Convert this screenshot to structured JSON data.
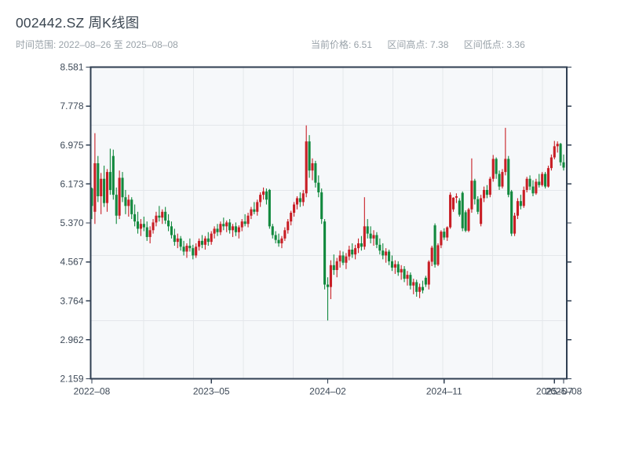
{
  "header": {
    "title": "002442.SZ 周K线图",
    "time_range": "时间范围: 2022–08–26 至 2025–08–08",
    "stats": [
      {
        "text": "当前价格: 6.51"
      },
      {
        "text": "区间高点: 7.38"
      },
      {
        "text": "区间低点: 3.36"
      }
    ]
  },
  "chart_data": {
    "type": "candlestick",
    "title": "002442.SZ 周K线图",
    "period": "weekly",
    "date_start": "2022-08-26",
    "date_end": "2025-08-08",
    "current_price": 6.51,
    "range_high": 7.38,
    "range_low": 3.36,
    "ylim": [
      2.159,
      8.581
    ],
    "y_ticks": [
      "8.581",
      "7.778",
      "6.975",
      "6.173",
      "5.370",
      "4.567",
      "3.764",
      "2.962",
      "2.159"
    ],
    "x_ticks": [
      {
        "label": "2022–08",
        "week": 0
      },
      {
        "label": "2023–05",
        "week": 39
      },
      {
        "label": "2024–02",
        "week": 77
      },
      {
        "label": "2024–11",
        "week": 115
      },
      {
        "label": "2025–07",
        "week": 151
      },
      {
        "label": "2025–08",
        "week": 154
      }
    ],
    "grid": {
      "h_values": [
        7.38,
        6.04,
        4.7,
        3.36
      ],
      "v_fracs": [
        0.111,
        0.2157,
        0.3204,
        0.4251,
        0.5298,
        0.6345,
        0.7392,
        0.8439,
        0.9486
      ]
    },
    "colors": {
      "up": "#c81e25",
      "down": "#12893e",
      "plot_bg": "#f6f8fa",
      "grid": "#e4e7eb",
      "spine": "#2f3e51",
      "tick_text": "#3e4a58"
    },
    "candles": [
      [
        6.08,
        6.1,
        5.45,
        5.72
      ],
      [
        5.6,
        7.22,
        5.35,
        6.6
      ],
      [
        6.6,
        6.75,
        5.8,
        5.92
      ],
      [
        5.92,
        6.4,
        5.55,
        6.28
      ],
      [
        6.28,
        6.55,
        5.7,
        5.78
      ],
      [
        5.78,
        6.48,
        5.6,
        6.42
      ],
      [
        6.42,
        6.9,
        5.95,
        6.05
      ],
      [
        6.75,
        6.88,
        5.85,
        5.95
      ],
      [
        5.95,
        6.1,
        5.35,
        5.52
      ],
      [
        5.52,
        6.45,
        5.45,
        6.3
      ],
      [
        6.3,
        6.42,
        5.8,
        5.9
      ],
      [
        5.9,
        6.05,
        5.55,
        5.72
      ],
      [
        5.72,
        5.95,
        5.5,
        5.85
      ],
      [
        5.85,
        5.9,
        5.45,
        5.55
      ],
      [
        5.55,
        5.75,
        5.3,
        5.4
      ],
      [
        5.4,
        5.6,
        5.15,
        5.25
      ],
      [
        5.25,
        5.45,
        5.1,
        5.35
      ],
      [
        5.35,
        5.5,
        5.2,
        5.28
      ],
      [
        5.28,
        5.4,
        5.0,
        5.08
      ],
      [
        5.08,
        5.3,
        4.95,
        5.22
      ],
      [
        5.22,
        5.45,
        5.15,
        5.38
      ],
      [
        5.38,
        5.6,
        5.3,
        5.52
      ],
      [
        5.52,
        5.72,
        5.4,
        5.48
      ],
      [
        5.48,
        5.65,
        5.35,
        5.6
      ],
      [
        5.6,
        5.7,
        5.35,
        5.42
      ],
      [
        5.42,
        5.55,
        5.2,
        5.3
      ],
      [
        5.3,
        5.4,
        5.05,
        5.12
      ],
      [
        5.12,
        5.25,
        4.9,
        4.98
      ],
      [
        4.98,
        5.15,
        4.85,
        5.05
      ],
      [
        5.05,
        5.1,
        4.8,
        4.88
      ],
      [
        4.88,
        5.0,
        4.7,
        4.78
      ],
      [
        4.78,
        4.95,
        4.65,
        4.9
      ],
      [
        4.9,
        5.05,
        4.78,
        4.85
      ],
      [
        4.85,
        4.92,
        4.62,
        4.7
      ],
      [
        4.7,
        4.95,
        4.65,
        4.88
      ],
      [
        4.88,
        5.05,
        4.8,
        5.0
      ],
      [
        5.0,
        5.12,
        4.85,
        4.92
      ],
      [
        4.92,
        5.1,
        4.82,
        5.05
      ],
      [
        5.05,
        5.18,
        4.9,
        4.98
      ],
      [
        4.98,
        5.2,
        4.92,
        5.15
      ],
      [
        5.15,
        5.3,
        5.05,
        5.25
      ],
      [
        5.25,
        5.35,
        5.1,
        5.18
      ],
      [
        5.18,
        5.4,
        5.12,
        5.35
      ],
      [
        5.35,
        5.48,
        5.22,
        5.3
      ],
      [
        5.3,
        5.42,
        5.18,
        5.38
      ],
      [
        5.38,
        5.45,
        5.15,
        5.22
      ],
      [
        5.22,
        5.35,
        5.08,
        5.3
      ],
      [
        5.3,
        5.38,
        5.1,
        5.18
      ],
      [
        5.18,
        5.32,
        5.05,
        5.28
      ],
      [
        5.28,
        5.45,
        5.2,
        5.4
      ],
      [
        5.4,
        5.55,
        5.3,
        5.35
      ],
      [
        5.35,
        5.58,
        5.28,
        5.52
      ],
      [
        5.52,
        5.7,
        5.45,
        5.65
      ],
      [
        5.65,
        5.8,
        5.55,
        5.6
      ],
      [
        5.6,
        5.85,
        5.52,
        5.8
      ],
      [
        5.8,
        6.0,
        5.7,
        5.95
      ],
      [
        5.95,
        6.1,
        5.85,
        6.02
      ],
      [
        6.02,
        6.08,
        5.75,
        5.85
      ],
      [
        6.05,
        6.07,
        5.25,
        5.3
      ],
      [
        5.3,
        5.35,
        5.05,
        5.12
      ],
      [
        5.12,
        5.2,
        4.95,
        5.02
      ],
      [
        5.02,
        5.15,
        4.88,
        4.95
      ],
      [
        4.95,
        5.1,
        4.85,
        5.05
      ],
      [
        5.05,
        5.28,
        5.0,
        5.22
      ],
      [
        5.22,
        5.45,
        5.15,
        5.4
      ],
      [
        5.4,
        5.62,
        5.32,
        5.58
      ],
      [
        5.58,
        5.8,
        5.5,
        5.75
      ],
      [
        5.75,
        5.92,
        5.65,
        5.88
      ],
      [
        5.88,
        6.0,
        5.7,
        5.8
      ],
      [
        5.8,
        6.05,
        5.72,
        5.98
      ],
      [
        5.98,
        7.38,
        5.9,
        7.05
      ],
      [
        7.05,
        7.18,
        6.3,
        6.45
      ],
      [
        6.45,
        6.7,
        6.25,
        6.6
      ],
      [
        6.6,
        6.65,
        6.1,
        6.2
      ],
      [
        6.2,
        6.35,
        5.9,
        6.0
      ],
      [
        6.0,
        6.08,
        5.35,
        5.45
      ],
      [
        5.4,
        5.45,
        4.0,
        4.1
      ],
      [
        4.1,
        4.25,
        3.36,
        4.05
      ],
      [
        4.05,
        4.6,
        3.8,
        4.5
      ],
      [
        4.5,
        4.72,
        4.3,
        4.4
      ],
      [
        4.4,
        4.65,
        4.25,
        4.58
      ],
      [
        4.58,
        4.8,
        4.45,
        4.7
      ],
      [
        4.7,
        4.78,
        4.5,
        4.55
      ],
      [
        4.55,
        4.75,
        4.42,
        4.68
      ],
      [
        4.68,
        4.9,
        4.6,
        4.82
      ],
      [
        4.82,
        4.95,
        4.65,
        4.72
      ],
      [
        4.72,
        4.92,
        4.62,
        4.85
      ],
      [
        4.85,
        5.05,
        4.75,
        4.95
      ],
      [
        4.95,
        5.1,
        4.8,
        4.88
      ],
      [
        4.88,
        5.9,
        4.82,
        5.3
      ],
      [
        5.3,
        5.45,
        5.05,
        5.15
      ],
      [
        5.15,
        5.3,
        4.95,
        5.05
      ],
      [
        5.05,
        5.22,
        4.9,
        5.12
      ],
      [
        5.12,
        5.18,
        4.85,
        4.92
      ],
      [
        4.92,
        5.05,
        4.72,
        4.8
      ],
      [
        4.8,
        4.95,
        4.62,
        4.7
      ],
      [
        4.7,
        4.85,
        4.55,
        4.78
      ],
      [
        4.78,
        4.82,
        4.5,
        4.58
      ],
      [
        4.58,
        4.7,
        4.38,
        4.45
      ],
      [
        4.45,
        4.6,
        4.32,
        4.52
      ],
      [
        4.52,
        4.58,
        4.28,
        4.35
      ],
      [
        4.35,
        4.5,
        4.2,
        4.42
      ],
      [
        4.42,
        4.48,
        4.15,
        4.22
      ],
      [
        4.22,
        4.38,
        4.08,
        4.3
      ],
      [
        4.3,
        4.35,
        4.0,
        4.08
      ],
      [
        4.08,
        4.22,
        3.9,
        4.15
      ],
      [
        4.15,
        4.2,
        3.85,
        3.95
      ],
      [
        3.95,
        4.12,
        3.82,
        4.05
      ],
      [
        4.05,
        4.18,
        3.92,
        3.98
      ],
      [
        4.24,
        4.28,
        4.05,
        4.1
      ],
      [
        4.1,
        4.6,
        4.0,
        4.57
      ],
      [
        4.57,
        4.9,
        4.48,
        4.86
      ],
      [
        5.32,
        5.36,
        4.45,
        4.51
      ],
      [
        4.51,
        4.95,
        4.48,
        4.91
      ],
      [
        4.91,
        5.22,
        4.85,
        5.19
      ],
      [
        5.19,
        5.26,
        5.02,
        5.07
      ],
      [
        5.07,
        5.3,
        5.0,
        5.28
      ],
      [
        5.28,
        6.0,
        5.25,
        5.95
      ],
      [
        5.65,
        5.9,
        5.6,
        5.89
      ],
      [
        5.89,
        5.98,
        5.78,
        5.92
      ],
      [
        5.83,
        5.88,
        5.5,
        5.54
      ],
      [
        5.99,
        6.02,
        5.2,
        5.26
      ],
      [
        5.59,
        5.63,
        5.18,
        5.21
      ],
      [
        5.21,
        5.68,
        5.18,
        5.65
      ],
      [
        5.65,
        6.7,
        5.58,
        6.24
      ],
      [
        6.24,
        6.28,
        5.75,
        5.86
      ],
      [
        5.86,
        5.92,
        5.55,
        5.6
      ],
      [
        5.35,
        5.95,
        5.3,
        5.88
      ],
      [
        5.88,
        6.12,
        5.8,
        6.05
      ],
      [
        6.05,
        6.15,
        5.88,
        5.95
      ],
      [
        5.95,
        6.32,
        5.9,
        6.28
      ],
      [
        6.28,
        6.77,
        6.22,
        6.69
      ],
      [
        6.69,
        6.72,
        6.28,
        6.38
      ],
      [
        6.38,
        6.45,
        6.05,
        6.12
      ],
      [
        6.12,
        6.48,
        6.08,
        6.42
      ],
      [
        6.42,
        7.33,
        6.35,
        6.69
      ],
      [
        6.69,
        6.75,
        5.9,
        5.95
      ],
      [
        6.02,
        6.05,
        5.1,
        5.15
      ],
      [
        5.15,
        5.58,
        5.1,
        5.52
      ],
      [
        5.52,
        5.88,
        5.45,
        5.82
      ],
      [
        5.82,
        5.95,
        5.65,
        5.72
      ],
      [
        5.72,
        6.12,
        5.68,
        6.05
      ],
      [
        6.05,
        6.32,
        6.0,
        6.28
      ],
      [
        6.28,
        6.35,
        6.05,
        6.12
      ],
      [
        6.12,
        6.25,
        5.92,
        5.98
      ],
      [
        5.98,
        6.28,
        5.95,
        6.22
      ],
      [
        6.22,
        6.38,
        6.1,
        6.15
      ],
      [
        6.15,
        6.42,
        6.12,
        6.38
      ],
      [
        6.38,
        6.42,
        6.08,
        6.12
      ],
      [
        6.12,
        6.55,
        6.1,
        6.5
      ],
      [
        6.5,
        6.78,
        6.45,
        6.72
      ],
      [
        6.72,
        7.06,
        6.68,
        6.95
      ],
      [
        6.95,
        7.05,
        6.82,
        7.0
      ],
      [
        7.0,
        7.02,
        6.55,
        6.62
      ],
      [
        6.62,
        6.78,
        6.45,
        6.51
      ]
    ]
  }
}
